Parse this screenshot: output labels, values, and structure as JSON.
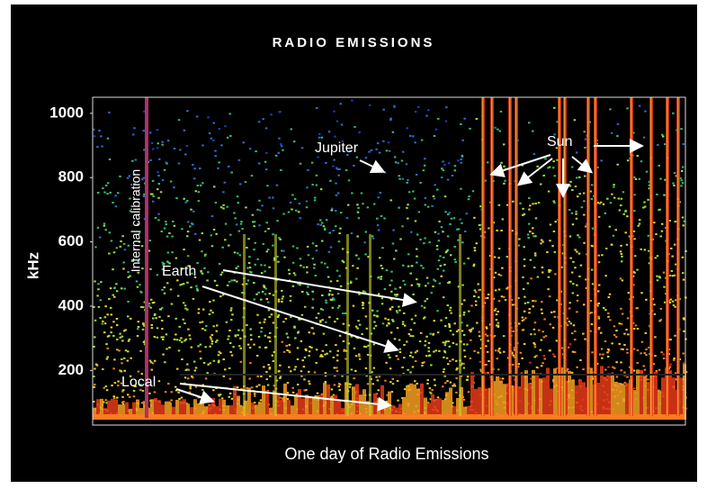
{
  "chart_data": {
    "type": "spectrogram",
    "title": "RADIO EMISSIONS",
    "y_label": "kHz",
    "x_label": "One day of Radio Emissions",
    "ylim": [
      30,
      1050
    ],
    "yticks": [
      200,
      400,
      600,
      800,
      1000
    ],
    "annotations": [
      "Jupiter",
      "Sun",
      "Earth",
      "Local",
      "Internal calibration"
    ]
  }
}
